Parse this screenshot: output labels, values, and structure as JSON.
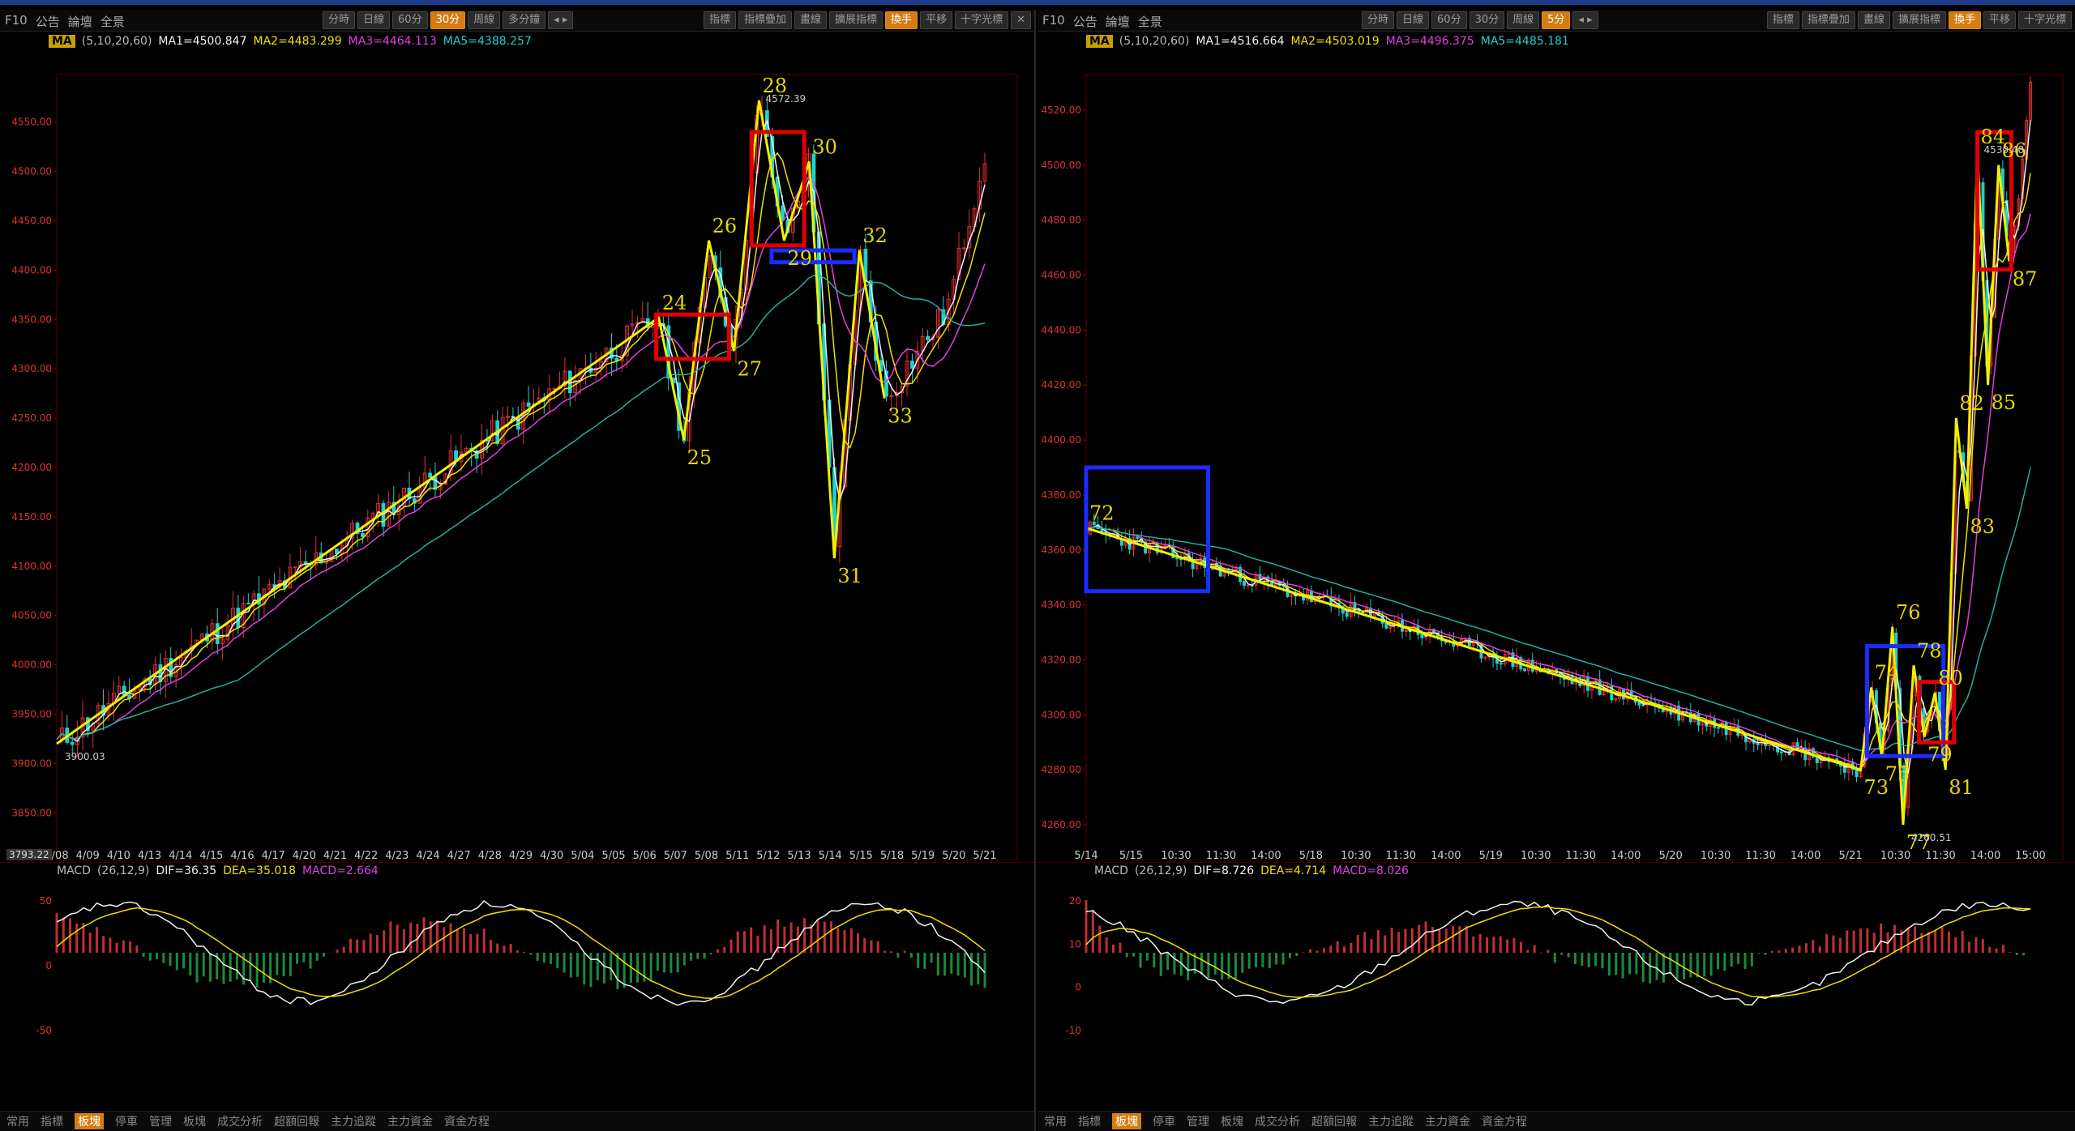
{
  "left": {
    "top_left": [
      "F10",
      "公告",
      "論壇",
      "全景"
    ],
    "periods": [
      "分時",
      "日線",
      "60分",
      "30分",
      "周線",
      "多分鐘"
    ],
    "active_period": "30分",
    "right_buttons": [
      "指標",
      "指標疊加",
      "畫線",
      "擴展指標",
      "換手",
      "平移",
      "十字光標"
    ],
    "ma": {
      "tag": "MA",
      "params": "(5,10,20,60)",
      "ma1": "MA1=4500.847",
      "ma2": "MA2=4483.299",
      "ma3": "MA3=4464.113",
      "ma5": "MA5=4388.257"
    },
    "macd": {
      "tag": "MACD",
      "params": "(26,12,9)",
      "dif": "DIF=36.35",
      "dea": "DEA=35.018",
      "macd": "MACD=2.664"
    },
    "bottom_tabs": [
      "常用",
      "指標",
      "板塊",
      "停車",
      "管理",
      "板塊",
      "成交分析",
      "超額回報",
      "主力追蹤",
      "主力資金",
      "資金方程"
    ],
    "corner_low": "3793.22"
  },
  "right": {
    "top_left": [
      "F10",
      "公告",
      "論壇",
      "全景"
    ],
    "periods": [
      "分時",
      "日線",
      "60分",
      "30分",
      "周線",
      "5分"
    ],
    "active_period": "5分",
    "right_buttons": [
      "指標",
      "指標疊加",
      "畫線",
      "擴展指標",
      "換手",
      "平移",
      "十字光標"
    ],
    "ma": {
      "tag": "MA",
      "params": "(5,10,20,60)",
      "ma1": "MA1=4516.664",
      "ma2": "MA2=4503.019",
      "ma3": "MA3=4496.375",
      "ma5": "MA5=4485.181"
    },
    "macd": {
      "tag": "MACD",
      "params": "(26,12,9)",
      "dif": "DIF=8.726",
      "dea": "DEA=4.714",
      "macd": "MACD=8.026"
    },
    "bottom_tabs": [
      "常用",
      "指標",
      "板塊",
      "停車",
      "管理",
      "板塊",
      "成交分析",
      "超額回報",
      "主力追蹤",
      "主力資金",
      "資金方程"
    ]
  },
  "chart_data": [
    {
      "type": "line",
      "name": "left-candlestick-30min",
      "y_ticks": [
        3850,
        3900,
        3950,
        4000,
        4050,
        4100,
        4150,
        4200,
        4250,
        4300,
        4350,
        4400,
        4450,
        4500,
        4550
      ],
      "ylim": [
        3810,
        4590
      ],
      "x_ticks": [
        "4/08",
        "4/09",
        "4/10",
        "4/13",
        "4/14",
        "4/15",
        "4/16",
        "4/17",
        "4/20",
        "4/21",
        "4/22",
        "4/23",
        "4/24",
        "4/27",
        "4/28",
        "4/29",
        "4/30",
        "5/04",
        "5/05",
        "5/06",
        "5/07",
        "5/08",
        "5/11",
        "5/12",
        "5/13",
        "5/14",
        "5/15",
        "5/18",
        "5/19",
        "5/20",
        "5/21"
      ],
      "annotations": {
        "high": "4572.39",
        "low": "3900.03"
      },
      "zigzag": [
        {
          "t": 0,
          "p": 3920
        },
        {
          "t": 24,
          "label": "24",
          "p": 4352
        },
        {
          "t": 25,
          "label": "25",
          "p": 4228
        },
        {
          "t": 26,
          "label": "26",
          "p": 4430
        },
        {
          "t": 27,
          "label": "27",
          "p": 4318
        },
        {
          "t": 28,
          "label": "28",
          "p": 4572
        },
        {
          "t": 29,
          "label": "29",
          "p": 4430
        },
        {
          "t": 30,
          "label": "30",
          "p": 4510
        },
        {
          "t": 31,
          "label": "31",
          "p": 4108
        },
        {
          "t": 32,
          "label": "32",
          "p": 4420
        },
        {
          "t": 33,
          "label": "33",
          "p": 4270
        }
      ],
      "macd_ticks": [
        "50",
        "0",
        "-50"
      ]
    },
    {
      "type": "line",
      "name": "right-candlestick-5min",
      "y_ticks": [
        4260,
        4280,
        4300,
        4320,
        4340,
        4360,
        4380,
        4400,
        4420,
        4440,
        4460,
        4480,
        4500,
        4520
      ],
      "ylim": [
        4250,
        4530
      ],
      "x_ticks": [
        "5/14",
        "5/15",
        "10:30",
        "11:30",
        "14:00",
        "5/18",
        "10:30",
        "11:30",
        "14:00",
        "5/19",
        "10:30",
        "11:30",
        "14:00",
        "5/20",
        "10:30",
        "11:30",
        "14:00",
        "5/21",
        "10:30",
        "11:30",
        "14:00",
        "15:00"
      ],
      "annotations": {
        "high": "4530.48",
        "low": "4260.51"
      },
      "zigzag": [
        {
          "t": 0,
          "label": "72",
          "p": 4368
        },
        {
          "t": 73,
          "label": "73",
          "p": 4280
        },
        {
          "t": 74,
          "label": "74",
          "p": 4310
        },
        {
          "t": 75,
          "label": "75",
          "p": 4285
        },
        {
          "t": 76,
          "label": "76",
          "p": 4332
        },
        {
          "t": 77,
          "label": "77",
          "p": 4260
        },
        {
          "t": 78,
          "label": "78",
          "p": 4318
        },
        {
          "t": 79,
          "label": "79",
          "p": 4292
        },
        {
          "t": 80,
          "label": "80",
          "p": 4308
        },
        {
          "t": 81,
          "label": "81",
          "p": 4280
        },
        {
          "t": 82,
          "label": "82",
          "p": 4408
        },
        {
          "t": 83,
          "label": "83",
          "p": 4375
        },
        {
          "t": 84,
          "label": "84",
          "p": 4505
        },
        {
          "t": 85,
          "label": "85",
          "p": 4420
        },
        {
          "t": 86,
          "label": "86",
          "p": 4500
        },
        {
          "t": 87,
          "label": "87",
          "p": 4465
        }
      ],
      "macd_ticks": [
        "20",
        "10",
        "0",
        "-10"
      ]
    }
  ],
  "colors": {
    "up": "#e03030",
    "down": "#20d0d0",
    "ma1": "#f0f0f0",
    "ma2": "#f0e000",
    "ma3": "#e040e0",
    "ma5": "#20b0a0",
    "zig": "#f0f000",
    "box_red": "#e00000",
    "box_blue": "#1a2cff",
    "label": "#e6d800"
  }
}
